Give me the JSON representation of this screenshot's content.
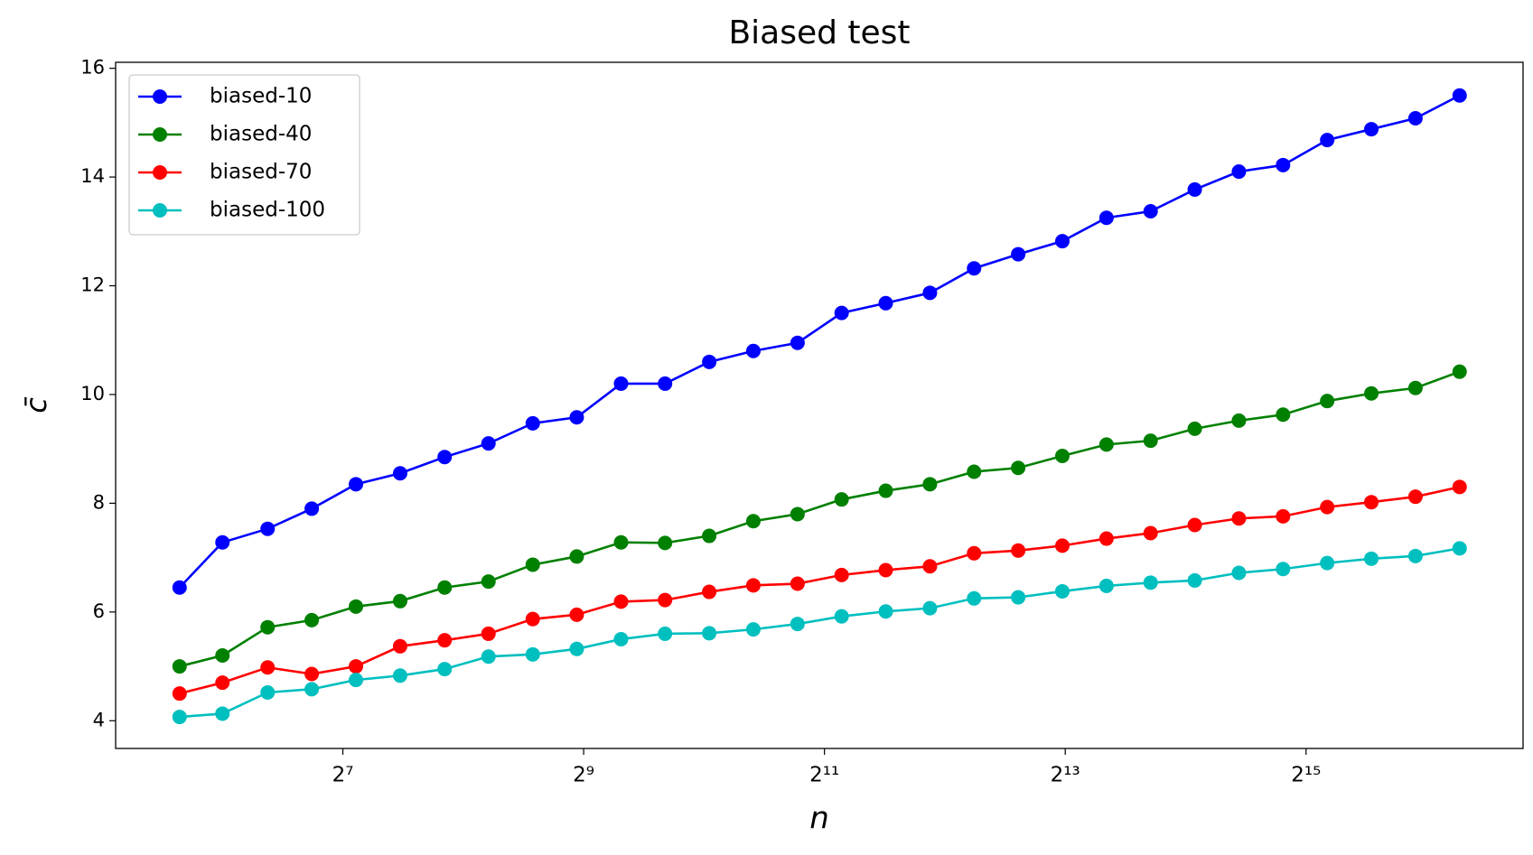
{
  "chart_data": {
    "type": "line",
    "title": "Biased test",
    "xlabel": "n",
    "ylabel": "c̄",
    "x": [
      50,
      64,
      83,
      107,
      138,
      178,
      230,
      296,
      382,
      492,
      635,
      818,
      1055,
      1360,
      1754,
      2261,
      2915,
      3759,
      4846,
      6248,
      8056,
      10387,
      13392,
      17267,
      22263,
      28704,
      37009,
      47717,
      61523,
      79323
    ],
    "xscale": "log2",
    "xlim": [
      34.6,
      114300
    ],
    "xticks": [
      {
        "value": 128,
        "label": "2⁷"
      },
      {
        "value": 512,
        "label": "2⁹"
      },
      {
        "value": 2048,
        "label": "2¹¹"
      },
      {
        "value": 8192,
        "label": "2¹³"
      },
      {
        "value": 32768,
        "label": "2¹⁵"
      }
    ],
    "ylim": [
      3.49,
      16.11
    ],
    "yticks": [
      4,
      6,
      8,
      10,
      12,
      14,
      16
    ],
    "legend": "upper left",
    "series": [
      {
        "name": "biased-10",
        "color": "#0000ff",
        "values": [
          6.45,
          7.28,
          7.53,
          7.9,
          8.35,
          8.55,
          8.85,
          9.1,
          9.47,
          9.58,
          10.2,
          10.2,
          10.6,
          10.8,
          10.95,
          11.5,
          11.68,
          11.87,
          12.32,
          12.58,
          12.82,
          13.25,
          13.37,
          13.77,
          14.1,
          14.22,
          14.68,
          14.88,
          15.08,
          15.5
        ]
      },
      {
        "name": "biased-40",
        "color": "#008000",
        "values": [
          5.0,
          5.2,
          5.72,
          5.85,
          6.1,
          6.2,
          6.45,
          6.56,
          6.87,
          7.02,
          7.28,
          7.27,
          7.4,
          7.67,
          7.8,
          8.07,
          8.23,
          8.35,
          8.58,
          8.65,
          8.87,
          9.08,
          9.15,
          9.37,
          9.52,
          9.63,
          9.88,
          10.02,
          10.12,
          10.42
        ]
      },
      {
        "name": "biased-70",
        "color": "#ff0000",
        "values": [
          4.5,
          4.7,
          4.98,
          4.86,
          5.0,
          5.37,
          5.48,
          5.6,
          5.87,
          5.95,
          6.19,
          6.22,
          6.37,
          6.49,
          6.52,
          6.68,
          6.77,
          6.84,
          7.08,
          7.13,
          7.22,
          7.35,
          7.45,
          7.6,
          7.72,
          7.76,
          7.93,
          8.02,
          8.12,
          8.3
        ]
      },
      {
        "name": "biased-100",
        "color": "#00bfbf",
        "values": [
          4.07,
          4.13,
          4.52,
          4.58,
          4.75,
          4.83,
          4.95,
          5.18,
          5.22,
          5.32,
          5.5,
          5.6,
          5.61,
          5.68,
          5.78,
          5.92,
          6.01,
          6.07,
          6.25,
          6.27,
          6.38,
          6.48,
          6.54,
          6.58,
          6.72,
          6.79,
          6.9,
          6.98,
          7.03,
          7.17
        ]
      }
    ]
  }
}
